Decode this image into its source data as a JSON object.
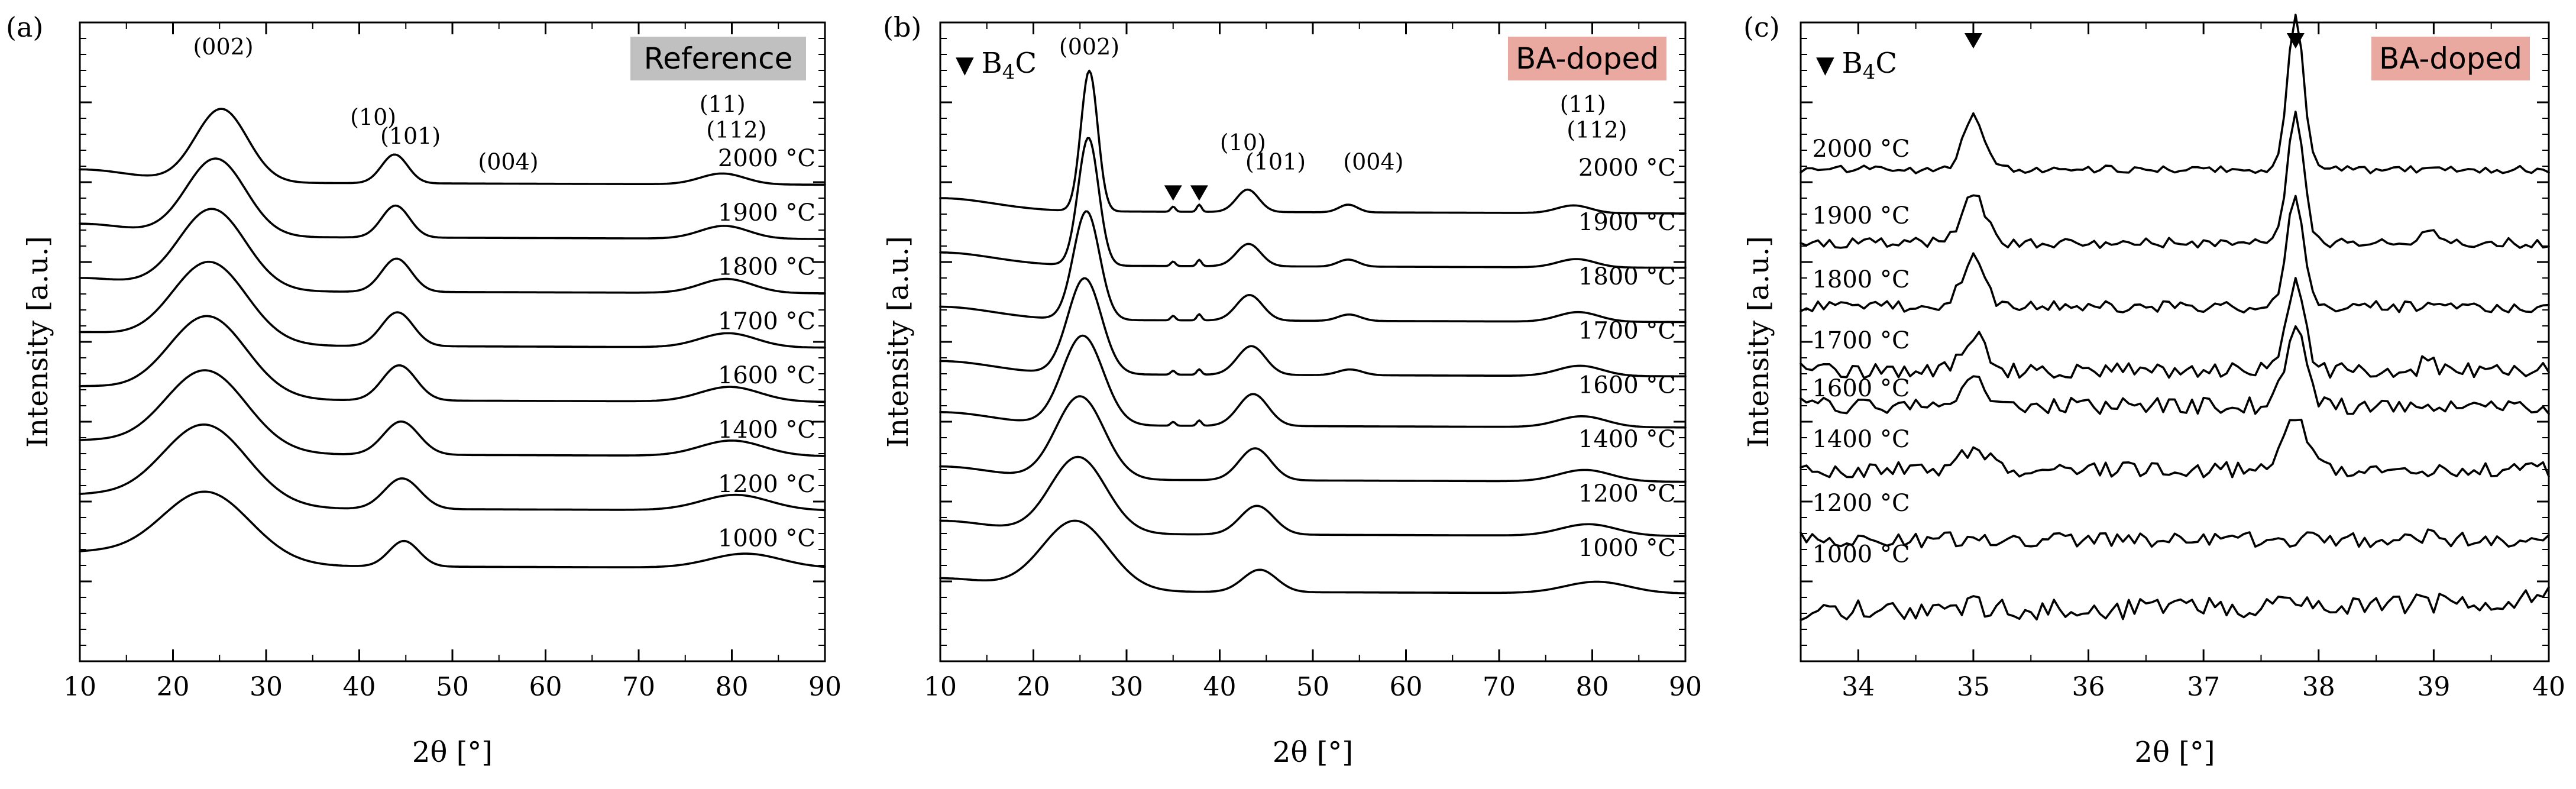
{
  "colors": {
    "reference_badge": "#c0c0c0",
    "bado_badge": "#e9a8a0",
    "line": "#000000"
  },
  "chart_data": [
    {
      "type": "line",
      "panel_label": "(a)",
      "badge": "Reference",
      "badge_color": "#c0c0c0",
      "xlabel": "2θ [°]",
      "ylabel": "Intensity [a.u.]",
      "xlim": [
        10,
        90
      ],
      "ylim": [
        0,
        1
      ],
      "xticks": [
        10,
        20,
        30,
        40,
        50,
        60,
        70,
        80,
        90
      ],
      "tick_labels": [
        "10",
        "20",
        "30",
        "40",
        "50",
        "60",
        "70",
        "80",
        "90"
      ],
      "legend_marker": null,
      "peak_labels": [
        {
          "text": "(002)",
          "x": 25.4,
          "y": 0.95
        },
        {
          "text": "(10)",
          "x": 41.5,
          "y": 0.84
        },
        {
          "text": "(101)",
          "x": 45.5,
          "y": 0.81
        },
        {
          "text": "(004)",
          "x": 56.0,
          "y": 0.77
        },
        {
          "text": "(11)",
          "x": 79.0,
          "y": 0.86
        },
        {
          "text": "(112)",
          "x": 80.5,
          "y": 0.82
        }
      ],
      "series": [
        {
          "name": "2000 °C",
          "offset": 0.75,
          "temp_pos": [
            78.5,
            0.775
          ],
          "peaks": [
            [
              25.2,
              0.115,
              2.8
            ],
            [
              43.8,
              0.045,
              1.4
            ],
            [
              79.0,
              0.017,
              2.4
            ]
          ]
        },
        {
          "name": "1900 °C",
          "offset": 0.665,
          "temp_pos": [
            78.5,
            0.69
          ],
          "peaks": [
            [
              24.6,
              0.122,
              3.2
            ],
            [
              43.9,
              0.05,
              1.5
            ],
            [
              79.2,
              0.02,
              2.6
            ]
          ]
        },
        {
          "name": "1800 °C",
          "offset": 0.58,
          "temp_pos": [
            78.5,
            0.605
          ],
          "peaks": [
            [
              24.2,
              0.128,
              3.6
            ],
            [
              44.0,
              0.052,
              1.6
            ],
            [
              79.4,
              0.022,
              2.8
            ]
          ]
        },
        {
          "name": "1700 °C",
          "offset": 0.495,
          "temp_pos": [
            78.5,
            0.52
          ],
          "peaks": [
            [
              23.9,
              0.13,
              4.0
            ],
            [
              44.1,
              0.053,
              1.7
            ],
            [
              79.6,
              0.022,
              3.0
            ]
          ]
        },
        {
          "name": "1600 °C",
          "offset": 0.41,
          "temp_pos": [
            78.5,
            0.435
          ],
          "peaks": [
            [
              23.7,
              0.13,
              4.2
            ],
            [
              44.3,
              0.055,
              1.8
            ],
            [
              79.8,
              0.023,
              3.2
            ]
          ]
        },
        {
          "name": "1400 °C",
          "offset": 0.325,
          "temp_pos": [
            78.5,
            0.35
          ],
          "peaks": [
            [
              23.5,
              0.13,
              4.4
            ],
            [
              44.5,
              0.052,
              1.9
            ],
            [
              80.0,
              0.024,
              3.4
            ]
          ]
        },
        {
          "name": "1200 °C",
          "offset": 0.24,
          "temp_pos": [
            78.5,
            0.265
          ],
          "peaks": [
            [
              23.4,
              0.13,
              4.6
            ],
            [
              44.6,
              0.048,
              1.9
            ],
            [
              80.4,
              0.024,
              3.6
            ]
          ]
        },
        {
          "name": "1000 °C",
          "offset": 0.15,
          "temp_pos": [
            78.5,
            0.18
          ],
          "peaks": [
            [
              23.5,
              0.115,
              4.8
            ],
            [
              44.8,
              0.04,
              1.6
            ],
            [
              81.5,
              0.022,
              3.8
            ]
          ]
        }
      ]
    },
    {
      "type": "line",
      "panel_label": "(b)",
      "badge": "BA-doped",
      "badge_color": "#e9a8a0",
      "xlabel": "2θ [°]",
      "ylabel": "Intensity [a.u.]",
      "xlim": [
        10,
        90
      ],
      "ylim": [
        0,
        1
      ],
      "xticks": [
        10,
        20,
        30,
        40,
        50,
        60,
        70,
        80,
        90
      ],
      "tick_labels": [
        "10",
        "20",
        "30",
        "40",
        "50",
        "60",
        "70",
        "80",
        "90"
      ],
      "legend_marker": {
        "symbol": "▼",
        "text": "B",
        "sub": "4",
        "tail": "C"
      },
      "b4c_markers": [
        35.0,
        37.8
      ],
      "peak_labels": [
        {
          "text": "(002)",
          "x": 26.0,
          "y": 0.95
        },
        {
          "text": "(10)",
          "x": 42.5,
          "y": 0.8
        },
        {
          "text": "(101)",
          "x": 46.0,
          "y": 0.77
        },
        {
          "text": "(004)",
          "x": 56.5,
          "y": 0.77
        },
        {
          "text": "(11)",
          "x": 79.0,
          "y": 0.86
        },
        {
          "text": "(112)",
          "x": 80.5,
          "y": 0.82
        }
      ],
      "series": [
        {
          "name": "2000 °C",
          "offset": 0.705,
          "temp_pos": [
            78.5,
            0.76
          ],
          "peaks": [
            [
              26.0,
              0.22,
              0.9
            ],
            [
              43.0,
              0.035,
              1.2
            ],
            [
              53.8,
              0.012,
              1.0
            ],
            [
              78.0,
              0.012,
              1.8
            ]
          ],
          "b4c": 0.008
        },
        {
          "name": "1900 °C",
          "offset": 0.62,
          "temp_pos": [
            78.5,
            0.675
          ],
          "peaks": [
            [
              25.9,
              0.2,
              1.1
            ],
            [
              43.1,
              0.035,
              1.3
            ],
            [
              53.8,
              0.011,
              1.1
            ],
            [
              78.3,
              0.013,
              2.0
            ]
          ],
          "b4c": 0.007
        },
        {
          "name": "1800 °C",
          "offset": 0.535,
          "temp_pos": [
            78.5,
            0.59
          ],
          "peaks": [
            [
              25.7,
              0.17,
              1.4
            ],
            [
              43.2,
              0.04,
              1.4
            ],
            [
              53.9,
              0.01,
              1.2
            ],
            [
              78.5,
              0.015,
              2.2
            ]
          ],
          "b4c": 0.007
        },
        {
          "name": "1700 °C",
          "offset": 0.45,
          "temp_pos": [
            78.5,
            0.505
          ],
          "peaks": [
            [
              25.5,
              0.15,
              1.8
            ],
            [
              43.4,
              0.045,
              1.5
            ],
            [
              54.0,
              0.009,
              1.3
            ],
            [
              78.7,
              0.016,
              2.4
            ]
          ],
          "b4c": 0.006
        },
        {
          "name": "1600 °C",
          "offset": 0.37,
          "temp_pos": [
            78.5,
            0.42
          ],
          "peaks": [
            [
              25.3,
              0.14,
              2.2
            ],
            [
              43.6,
              0.05,
              1.6
            ],
            [
              78.9,
              0.017,
              2.6
            ]
          ],
          "b4c": 0.006
        },
        {
          "name": "1400 °C",
          "offset": 0.285,
          "temp_pos": [
            78.5,
            0.335
          ],
          "peaks": [
            [
              25.0,
              0.13,
              2.6
            ],
            [
              43.8,
              0.05,
              1.7
            ],
            [
              79.2,
              0.018,
              2.8
            ]
          ],
          "b4c": 0.0
        },
        {
          "name": "1200 °C",
          "offset": 0.2,
          "temp_pos": [
            78.5,
            0.25
          ],
          "peaks": [
            [
              24.8,
              0.12,
              3.0
            ],
            [
              44.0,
              0.045,
              1.8
            ],
            [
              79.6,
              0.018,
              3.0
            ]
          ],
          "b4c": 0.0
        },
        {
          "name": "1000 °C",
          "offset": 0.11,
          "temp_pos": [
            78.5,
            0.165
          ],
          "peaks": [
            [
              24.5,
              0.11,
              3.6
            ],
            [
              44.3,
              0.035,
              1.8
            ],
            [
              80.5,
              0.018,
              3.4
            ]
          ],
          "b4c": 0.0
        }
      ]
    },
    {
      "type": "line",
      "panel_label": "(c)",
      "badge": "BA-doped",
      "badge_color": "#e9a8a0",
      "xlabel": "2θ [°]",
      "ylabel": "Intensity [a.u.]",
      "xlim": [
        33.5,
        40
      ],
      "ylim": [
        0,
        1
      ],
      "xticks": [
        34,
        35,
        36,
        37,
        38,
        39,
        40
      ],
      "tick_labels": [
        "34",
        "35",
        "36",
        "37",
        "38",
        "39",
        "40"
      ],
      "legend_marker": {
        "symbol": "▼",
        "text": "B",
        "sub": "4",
        "tail": "C"
      },
      "b4c_markers": [
        35.0,
        37.8
      ],
      "peak_labels": [],
      "series": [
        {
          "name": "2000 °C",
          "offset": 0.77,
          "temp_pos": [
            33.6,
            0.79
          ],
          "peaks": [
            [
              35.0,
              0.085,
              0.09
            ],
            [
              37.8,
              0.24,
              0.07
            ]
          ],
          "noise": 0.006
        },
        {
          "name": "1900 °C",
          "offset": 0.655,
          "temp_pos": [
            33.6,
            0.685
          ],
          "peaks": [
            [
              35.0,
              0.075,
              0.1
            ],
            [
              37.8,
              0.2,
              0.07
            ],
            [
              38.95,
              0.02,
              0.05
            ]
          ],
          "noise": 0.008
        },
        {
          "name": "1800 °C",
          "offset": 0.555,
          "temp_pos": [
            33.6,
            0.585
          ],
          "peaks": [
            [
              35.0,
              0.075,
              0.1
            ],
            [
              37.8,
              0.18,
              0.07
            ]
          ],
          "noise": 0.009
        },
        {
          "name": "1700 °C",
          "offset": 0.455,
          "temp_pos": [
            33.6,
            0.49
          ],
          "peaks": [
            [
              35.0,
              0.055,
              0.1
            ],
            [
              37.8,
              0.14,
              0.08
            ],
            [
              38.95,
              0.02,
              0.05
            ]
          ],
          "noise": 0.012
        },
        {
          "name": "1600 °C",
          "offset": 0.4,
          "temp_pos": [
            33.6,
            0.415
          ],
          "peaks": [
            [
              35.0,
              0.055,
              0.1
            ],
            [
              37.8,
              0.12,
              0.09
            ]
          ],
          "noise": 0.013
        },
        {
          "name": "1400 °C",
          "offset": 0.3,
          "temp_pos": [
            33.6,
            0.335
          ],
          "peaks": [
            [
              35.0,
              0.03,
              0.12
            ],
            [
              37.8,
              0.085,
              0.1
            ]
          ],
          "noise": 0.012
        },
        {
          "name": "1200 °C",
          "offset": 0.19,
          "temp_pos": [
            33.6,
            0.235
          ],
          "peaks": [
            [
              38.95,
              0.012,
              0.05
            ]
          ],
          "noise": 0.012
        },
        {
          "name": "1000 °C",
          "offset": 0.08,
          "temp_pos": [
            33.6,
            0.155
          ],
          "peaks": [
            [
              35.0,
              0.006,
              0.12
            ],
            [
              37.8,
              0.008,
              0.1
            ]
          ],
          "noise": 0.016,
          "slope": 0.02
        }
      ]
    }
  ]
}
